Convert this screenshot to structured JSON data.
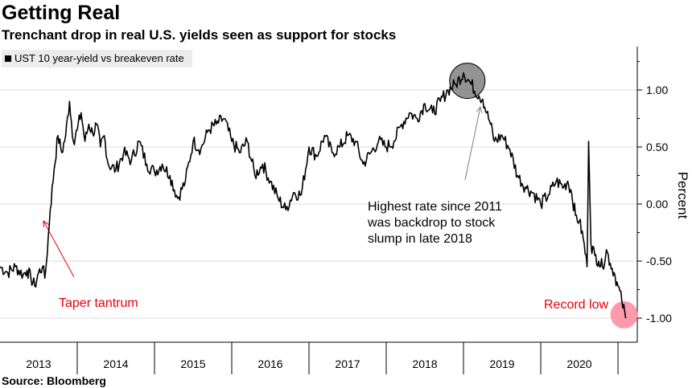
{
  "title": "Getting Real",
  "subtitle": "Trenchant drop in real U.S. yields seen as support for stocks",
  "source": "Source: Bloomberg",
  "colors": {
    "line": "#000000",
    "grid": "#dcdcdc",
    "red": "#e8000d",
    "pink": "#ff8fa3",
    "gray": "#808080"
  },
  "chart_data": {
    "type": "line",
    "title": "Getting Real",
    "subtitle": "Trenchant drop in real U.S. yields seen as support for stocks",
    "ylabel": "Percent",
    "ylim": [
      -1.2,
      1.4
    ],
    "xlim": [
      2012.5,
      2020.75
    ],
    "yticks": [
      1.0,
      0.5,
      0.0,
      -0.5,
      -1.0
    ],
    "ytick_labels": [
      "1.00",
      "0.50",
      "0.00",
      "-0.50",
      "-1.00"
    ],
    "xticks": [
      2013,
      2014,
      2015,
      2016,
      2017,
      2018,
      2019,
      2020
    ],
    "xtick_labels": [
      "2013",
      "2014",
      "2015",
      "2016",
      "2017",
      "2018",
      "2019",
      "2020"
    ],
    "grid": true,
    "legend": {
      "position": "top-left",
      "entries": [
        "UST 10 year-yield vs breakeven rate"
      ]
    },
    "series": [
      {
        "name": "UST 10 year-yield vs breakeven rate",
        "x": [
          2012.5,
          2012.6,
          2012.7,
          2012.8,
          2012.85,
          2012.9,
          2012.95,
          2013.0,
          2013.05,
          2013.08,
          2013.1,
          2013.15,
          2013.2,
          2013.25,
          2013.3,
          2013.35,
          2013.4,
          2013.45,
          2013.5,
          2013.55,
          2013.6,
          2013.65,
          2013.7,
          2013.75,
          2013.8,
          2013.85,
          2013.9,
          2014.0,
          2014.1,
          2014.2,
          2014.3,
          2014.4,
          2014.5,
          2014.6,
          2014.7,
          2014.8,
          2014.9,
          2015.0,
          2015.1,
          2015.2,
          2015.3,
          2015.4,
          2015.5,
          2015.6,
          2015.7,
          2015.8,
          2015.9,
          2016.0,
          2016.1,
          2016.2,
          2016.3,
          2016.4,
          2016.5,
          2016.6,
          2016.7,
          2016.8,
          2016.9,
          2017.0,
          2017.1,
          2017.2,
          2017.3,
          2017.4,
          2017.5,
          2017.6,
          2017.7,
          2017.8,
          2017.9,
          2018.0,
          2018.1,
          2018.2,
          2018.3,
          2018.4,
          2018.5,
          2018.6,
          2018.7,
          2018.75,
          2018.8,
          2018.85,
          2018.9,
          2019.0,
          2019.1,
          2019.2,
          2019.3,
          2019.4,
          2019.5,
          2019.6,
          2019.7,
          2019.8,
          2019.85,
          2019.9,
          2019.95,
          2020.0,
          2020.05,
          2020.1,
          2020.12,
          2020.15,
          2020.2,
          2020.25,
          2020.3,
          2020.35,
          2020.4,
          2020.45,
          2020.5,
          2020.55,
          2020.6
        ],
        "y": [
          -0.55,
          -0.6,
          -0.55,
          -0.62,
          -0.58,
          -0.65,
          -0.72,
          -0.6,
          -0.55,
          -0.65,
          -0.52,
          -0.05,
          0.3,
          0.6,
          0.45,
          0.6,
          0.9,
          0.55,
          0.65,
          0.8,
          0.55,
          0.7,
          0.62,
          0.7,
          0.5,
          0.6,
          0.35,
          0.3,
          0.45,
          0.38,
          0.55,
          0.35,
          0.28,
          0.35,
          0.25,
          0.05,
          0.2,
          0.55,
          0.48,
          0.65,
          0.7,
          0.75,
          0.55,
          0.45,
          0.55,
          0.25,
          0.35,
          0.2,
          0.05,
          -0.05,
          0.1,
          0.08,
          0.5,
          0.42,
          0.6,
          0.45,
          0.5,
          0.6,
          0.55,
          0.35,
          0.45,
          0.55,
          0.5,
          0.55,
          0.7,
          0.8,
          0.75,
          0.88,
          0.8,
          0.9,
          1.0,
          1.05,
          1.15,
          1.05,
          0.95,
          0.92,
          0.8,
          0.7,
          0.55,
          0.6,
          0.48,
          0.25,
          0.15,
          0.1,
          0.0,
          0.08,
          0.2,
          0.15,
          0.2,
          0.1,
          -0.1,
          -0.15,
          -0.3,
          -0.55,
          0.55,
          -0.35,
          -0.45,
          -0.5,
          -0.55,
          -0.4,
          -0.52,
          -0.6,
          -0.72,
          -0.85,
          -1.0
        ]
      }
    ],
    "annotations": [
      {
        "text": "Taper tantrum",
        "color": "red",
        "target": [
          2013.05,
          -0.1
        ]
      },
      {
        "text_lines": [
          "Highest rate since 2011",
          "was backdrop to stock",
          "slump in late 2018"
        ],
        "color": "black",
        "target": [
          2018.55,
          0.85
        ]
      },
      {
        "text": "Record low",
        "color": "red",
        "target": [
          2020.6,
          -0.95
        ]
      }
    ],
    "markers": [
      {
        "name": "peak-circle",
        "x": 2018.55,
        "y": 1.08,
        "color": "gray"
      },
      {
        "name": "record-low-circle",
        "x": 2020.6,
        "y": -0.95,
        "color": "pink"
      }
    ]
  }
}
